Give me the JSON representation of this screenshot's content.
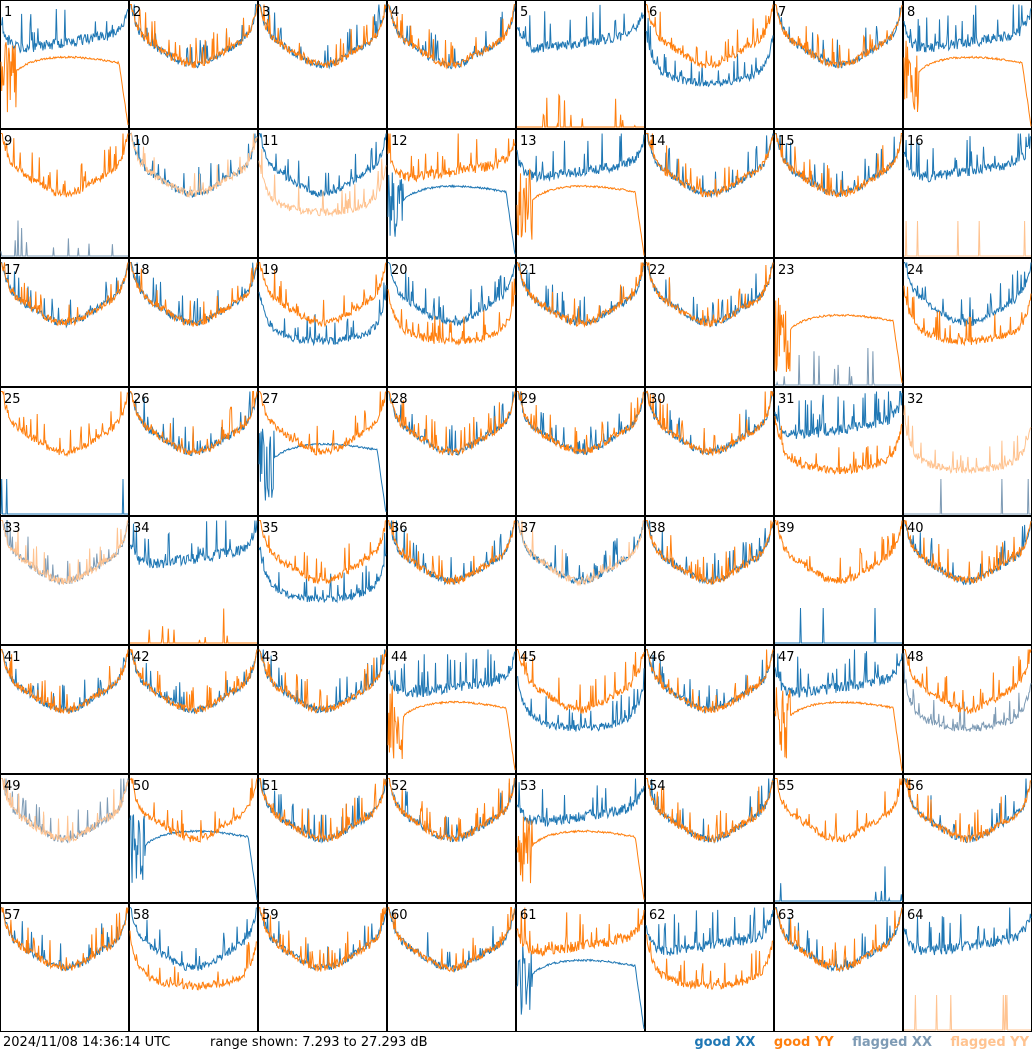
{
  "footer": {
    "timestamp": "2024/11/08 14:36:14 UTC",
    "range_text": "range shown: 7.293 to 27.293 dB"
  },
  "colors": {
    "good_xx": "#1f77b4",
    "good_yy": "#ff7f0e",
    "flagged_xx": "#7e9bb5",
    "flagged_yy": "#ffc390"
  },
  "chart_data": {
    "type": "line",
    "layout": "8x8 small multiples, one panel per antenna input",
    "ylim": [
      7.293,
      27.293
    ],
    "yunit": "dB",
    "legend": [
      {
        "key": "good_xx",
        "label": "good XX"
      },
      {
        "key": "good_yy",
        "label": "good YY"
      },
      {
        "key": "flagged_xx",
        "label": "flagged XX"
      },
      {
        "key": "flagged_yy",
        "label": "flagged YY"
      }
    ],
    "panels": [
      {
        "label": "1",
        "xx": "good",
        "yy": "good",
        "xx_shape": "ripple",
        "yy_shape": "plateau"
      },
      {
        "label": "2",
        "xx": "good",
        "yy": "good",
        "xx_shape": "bowl",
        "yy_shape": "bowl"
      },
      {
        "label": "3",
        "xx": "good",
        "yy": "good",
        "xx_shape": "bowl",
        "yy_shape": "bowl"
      },
      {
        "label": "4",
        "xx": "good",
        "yy": "good",
        "xx_shape": "bowl",
        "yy_shape": "bowl"
      },
      {
        "label": "5",
        "xx": "good",
        "yy": "good",
        "xx_shape": "ripple",
        "yy_shape": "low-spikes"
      },
      {
        "label": "6",
        "xx": "good",
        "yy": "good",
        "xx_shape": "low-bowl",
        "yy_shape": "bowl"
      },
      {
        "label": "7",
        "xx": "good",
        "yy": "good",
        "xx_shape": "bowl",
        "yy_shape": "bowl"
      },
      {
        "label": "8",
        "xx": "good",
        "yy": "good",
        "xx_shape": "ripple",
        "yy_shape": "plateau"
      },
      {
        "label": "9",
        "xx": "flagged",
        "yy": "good",
        "xx_shape": "low-spikes",
        "yy_shape": "bowl"
      },
      {
        "label": "10",
        "xx": "good",
        "yy": "flagged",
        "xx_shape": "bowl",
        "yy_shape": "bowl"
      },
      {
        "label": "11",
        "xx": "good",
        "yy": "flagged",
        "xx_shape": "bowl",
        "yy_shape": "low-bowl"
      },
      {
        "label": "12",
        "xx": "good",
        "yy": "good",
        "xx_shape": "plateau",
        "yy_shape": "ripple"
      },
      {
        "label": "13",
        "xx": "good",
        "yy": "good",
        "xx_shape": "ripple",
        "yy_shape": "plateau"
      },
      {
        "label": "14",
        "xx": "good",
        "yy": "good",
        "xx_shape": "bowl",
        "yy_shape": "bowl"
      },
      {
        "label": "15",
        "xx": "good",
        "yy": "good",
        "xx_shape": "bowl",
        "yy_shape": "bowl"
      },
      {
        "label": "16",
        "xx": "good",
        "yy": "flagged",
        "xx_shape": "ripple",
        "yy_shape": "flat-low"
      },
      {
        "label": "17",
        "xx": "good",
        "yy": "good",
        "xx_shape": "bowl",
        "yy_shape": "bowl"
      },
      {
        "label": "18",
        "xx": "good",
        "yy": "good",
        "xx_shape": "bowl",
        "yy_shape": "bowl"
      },
      {
        "label": "19",
        "xx": "good",
        "yy": "good",
        "xx_shape": "low-bowl",
        "yy_shape": "bowl"
      },
      {
        "label": "20",
        "xx": "good",
        "yy": "good",
        "xx_shape": "bowl",
        "yy_shape": "low-bowl"
      },
      {
        "label": "21",
        "xx": "good",
        "yy": "good",
        "xx_shape": "bowl",
        "yy_shape": "bowl"
      },
      {
        "label": "22",
        "xx": "good",
        "yy": "good",
        "xx_shape": "bowl",
        "yy_shape": "bowl"
      },
      {
        "label": "23",
        "xx": "flagged",
        "yy": "good",
        "xx_shape": "low-spikes",
        "yy_shape": "plateau"
      },
      {
        "label": "24",
        "xx": "good",
        "yy": "good",
        "xx_shape": "bowl",
        "yy_shape": "low-bowl"
      },
      {
        "label": "25",
        "xx": "good",
        "yy": "good",
        "xx_shape": "flat-low",
        "yy_shape": "bowl"
      },
      {
        "label": "26",
        "xx": "good",
        "yy": "good",
        "xx_shape": "bowl",
        "yy_shape": "bowl"
      },
      {
        "label": "27",
        "xx": "good",
        "yy": "good",
        "xx_shape": "plateau",
        "yy_shape": "bowl"
      },
      {
        "label": "28",
        "xx": "good",
        "yy": "good",
        "xx_shape": "bowl",
        "yy_shape": "bowl"
      },
      {
        "label": "29",
        "xx": "good",
        "yy": "good",
        "xx_shape": "bowl",
        "yy_shape": "bowl"
      },
      {
        "label": "30",
        "xx": "good",
        "yy": "good",
        "xx_shape": "bowl",
        "yy_shape": "bowl"
      },
      {
        "label": "31",
        "xx": "good",
        "yy": "good",
        "xx_shape": "ripple",
        "yy_shape": "low-bowl"
      },
      {
        "label": "32",
        "xx": "flagged",
        "yy": "flagged",
        "xx_shape": "flat-low",
        "yy_shape": "low-bowl"
      },
      {
        "label": "33",
        "xx": "flagged",
        "yy": "flagged",
        "xx_shape": "bowl",
        "yy_shape": "bowl"
      },
      {
        "label": "34",
        "xx": "good",
        "yy": "good",
        "xx_shape": "ripple",
        "yy_shape": "low-spikes"
      },
      {
        "label": "35",
        "xx": "good",
        "yy": "good",
        "xx_shape": "low-bowl",
        "yy_shape": "bowl"
      },
      {
        "label": "36",
        "xx": "good",
        "yy": "good",
        "xx_shape": "bowl",
        "yy_shape": "bowl"
      },
      {
        "label": "37",
        "xx": "good",
        "yy": "flagged",
        "xx_shape": "bowl",
        "yy_shape": "bowl"
      },
      {
        "label": "38",
        "xx": "good",
        "yy": "good",
        "xx_shape": "bowl",
        "yy_shape": "bowl"
      },
      {
        "label": "39",
        "xx": "good",
        "yy": "good",
        "xx_shape": "flat-low",
        "yy_shape": "bowl"
      },
      {
        "label": "40",
        "xx": "good",
        "yy": "good",
        "xx_shape": "bowl",
        "yy_shape": "bowl"
      },
      {
        "label": "41",
        "xx": "good",
        "yy": "good",
        "xx_shape": "bowl",
        "yy_shape": "bowl"
      },
      {
        "label": "42",
        "xx": "good",
        "yy": "good",
        "xx_shape": "bowl",
        "yy_shape": "bowl"
      },
      {
        "label": "43",
        "xx": "good",
        "yy": "good",
        "xx_shape": "bowl",
        "yy_shape": "bowl"
      },
      {
        "label": "44",
        "xx": "good",
        "yy": "good",
        "xx_shape": "ripple",
        "yy_shape": "plateau"
      },
      {
        "label": "45",
        "xx": "good",
        "yy": "good",
        "xx_shape": "low-bowl",
        "yy_shape": "bowl"
      },
      {
        "label": "46",
        "xx": "good",
        "yy": "good",
        "xx_shape": "bowl",
        "yy_shape": "bowl"
      },
      {
        "label": "47",
        "xx": "good",
        "yy": "good",
        "xx_shape": "ripple",
        "yy_shape": "plateau"
      },
      {
        "label": "48",
        "xx": "flagged",
        "yy": "good",
        "xx_shape": "low-bowl",
        "yy_shape": "bowl"
      },
      {
        "label": "49",
        "xx": "flagged",
        "yy": "flagged",
        "xx_shape": "bowl",
        "yy_shape": "bowl"
      },
      {
        "label": "50",
        "xx": "good",
        "yy": "good",
        "xx_shape": "plateau",
        "yy_shape": "bowl"
      },
      {
        "label": "51",
        "xx": "good",
        "yy": "good",
        "xx_shape": "bowl",
        "yy_shape": "bowl"
      },
      {
        "label": "52",
        "xx": "good",
        "yy": "good",
        "xx_shape": "bowl",
        "yy_shape": "bowl"
      },
      {
        "label": "53",
        "xx": "good",
        "yy": "good",
        "xx_shape": "ripple",
        "yy_shape": "plateau"
      },
      {
        "label": "54",
        "xx": "good",
        "yy": "good",
        "xx_shape": "bowl",
        "yy_shape": "bowl"
      },
      {
        "label": "55",
        "xx": "good",
        "yy": "good",
        "xx_shape": "low-spikes",
        "yy_shape": "bowl"
      },
      {
        "label": "56",
        "xx": "good",
        "yy": "good",
        "xx_shape": "bowl",
        "yy_shape": "bowl"
      },
      {
        "label": "57",
        "xx": "good",
        "yy": "good",
        "xx_shape": "bowl",
        "yy_shape": "bowl"
      },
      {
        "label": "58",
        "xx": "good",
        "yy": "good",
        "xx_shape": "bowl",
        "yy_shape": "low-bowl"
      },
      {
        "label": "59",
        "xx": "good",
        "yy": "good",
        "xx_shape": "bowl",
        "yy_shape": "bowl"
      },
      {
        "label": "60",
        "xx": "good",
        "yy": "good",
        "xx_shape": "bowl",
        "yy_shape": "bowl"
      },
      {
        "label": "61",
        "xx": "good",
        "yy": "good",
        "xx_shape": "plateau",
        "yy_shape": "ripple"
      },
      {
        "label": "62",
        "xx": "good",
        "yy": "good",
        "xx_shape": "ripple",
        "yy_shape": "low-bowl"
      },
      {
        "label": "63",
        "xx": "good",
        "yy": "good",
        "xx_shape": "bowl",
        "yy_shape": "bowl"
      },
      {
        "label": "64",
        "xx": "good",
        "yy": "flagged",
        "xx_shape": "ripple",
        "yy_shape": "flat-low"
      }
    ]
  }
}
